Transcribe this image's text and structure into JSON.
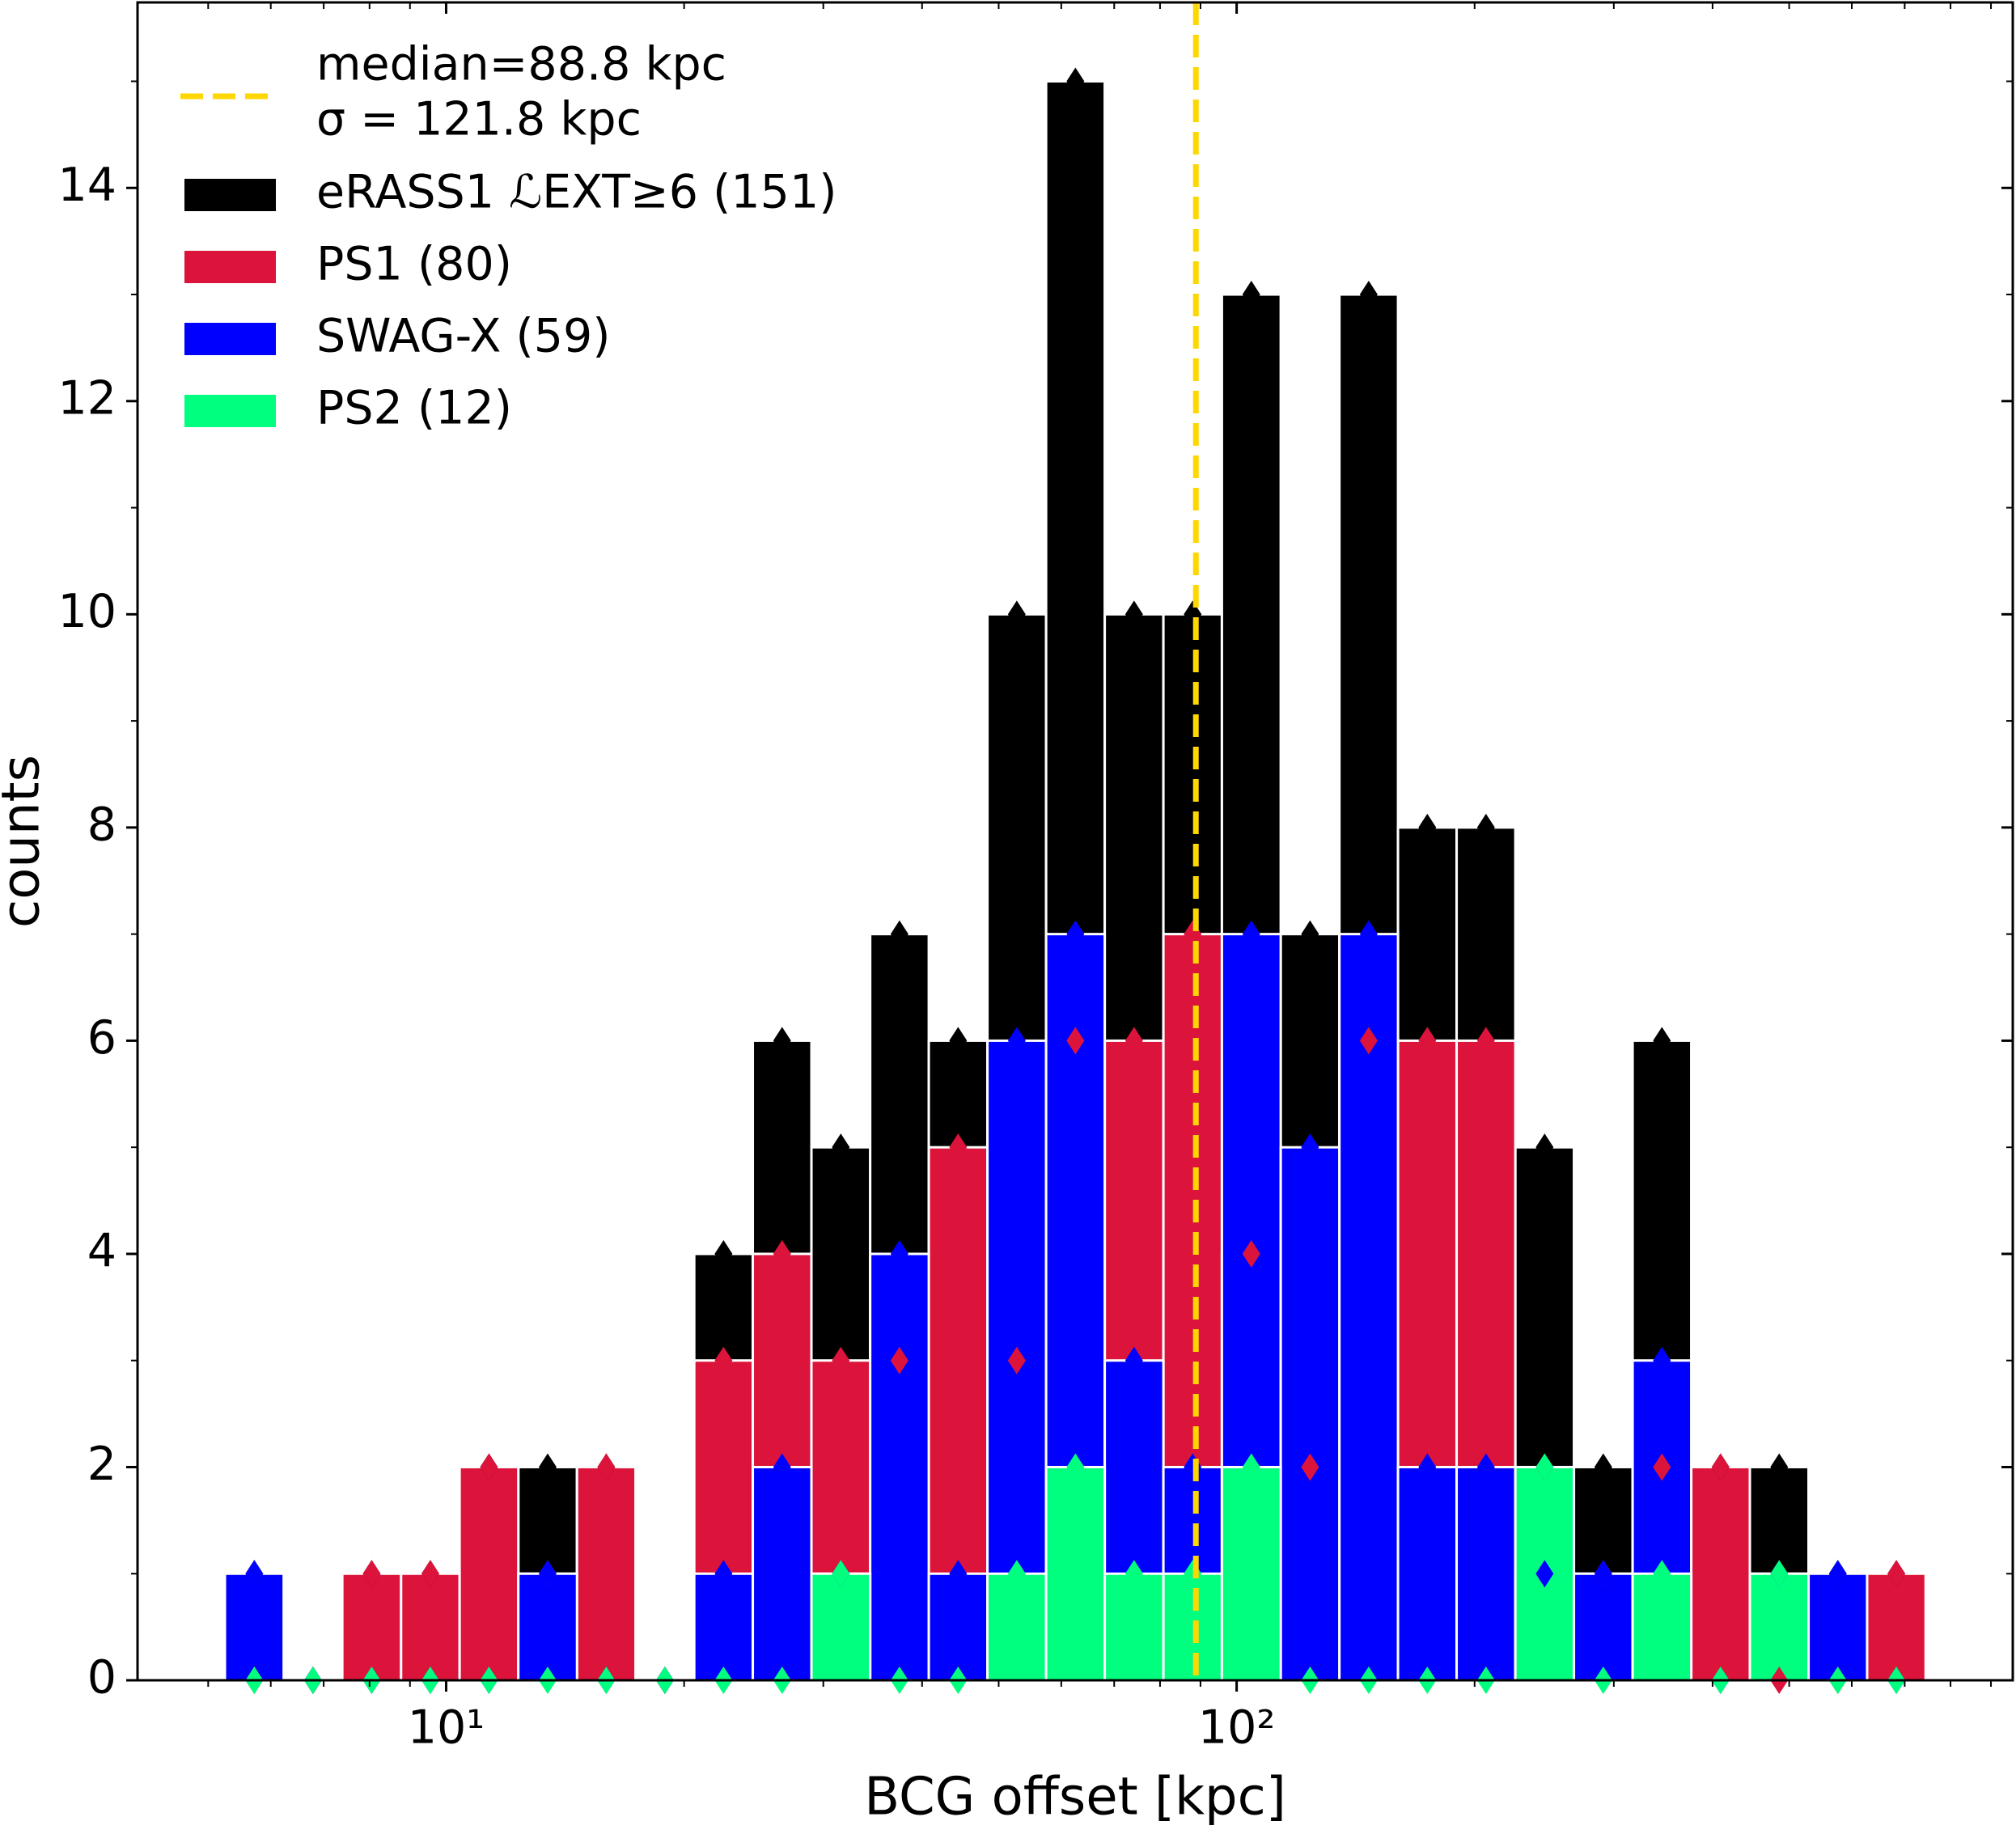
{
  "chart_data": {
    "type": "histogram",
    "xlabel": "BCG offset [kpc]",
    "ylabel": "counts",
    "log_x": true,
    "bins": [
      5.25,
      6.23,
      7.39,
      8.77,
      10.4,
      12.34,
      14.64,
      17.36,
      20.6,
      24.43,
      28.98,
      34.39,
      40.79,
      48.39,
      57.41,
      68.1,
      80.79,
      95.8,
      113.7,
      134.9,
      160.0,
      189.8,
      225.2,
      267.1,
      316.9,
      375.9,
      445.9,
      529.0,
      627.4,
      744.0
    ],
    "series": [
      {
        "name": "eRASS1 ℒEXT≥6 (151)",
        "color": "#000000",
        "values": [
          1,
          0,
          1,
          1,
          2,
          2,
          2,
          0,
          4,
          6,
          5,
          7,
          6,
          10,
          15,
          10,
          10,
          13,
          7,
          13,
          8,
          8,
          5,
          2,
          6,
          2,
          2,
          1,
          1
        ]
      },
      {
        "name": "PS1 (80)",
        "color": "#dc143c",
        "values": [
          0,
          0,
          1,
          1,
          2,
          1,
          2,
          0,
          3,
          4,
          3,
          3,
          5,
          3,
          6,
          6,
          7,
          4,
          2,
          6,
          6,
          6,
          2,
          1,
          2,
          2,
          0,
          0,
          1
        ]
      },
      {
        "name": "SWAG-X (59)",
        "color": "#0000ff",
        "values": [
          1,
          0,
          0,
          0,
          0,
          1,
          0,
          0,
          1,
          2,
          1,
          4,
          1,
          6,
          7,
          3,
          2,
          7,
          5,
          7,
          2,
          2,
          1,
          1,
          3,
          0,
          1,
          1,
          0
        ]
      },
      {
        "name": "PS2 (12)",
        "color": "#00ff7f",
        "values": [
          0,
          0,
          0,
          0,
          0,
          0,
          0,
          0,
          0,
          0,
          1,
          0,
          0,
          1,
          2,
          1,
          1,
          2,
          0,
          0,
          0,
          0,
          2,
          0,
          1,
          0,
          1,
          0,
          0
        ]
      }
    ],
    "median": {
      "value": 88.8,
      "label": "median=88.8 kpc",
      "sigma_label": "σ = 121.8 kpc",
      "color": "#ffd700"
    },
    "xlim": [
      4.07,
      959
    ],
    "xticks": [
      {
        "value": 10,
        "label": "10¹"
      },
      {
        "value": 100,
        "label": "10²"
      }
    ],
    "xticks_minor": [
      5,
      6,
      7,
      8,
      9,
      20,
      30,
      40,
      50,
      60,
      70,
      80,
      90,
      200,
      300,
      400,
      500,
      600,
      700,
      800,
      900
    ],
    "ylim": [
      0,
      15.74
    ],
    "yticks": [
      0,
      2,
      4,
      6,
      8,
      10,
      12,
      14
    ],
    "yticks_minor": [
      1,
      3,
      5,
      7,
      9,
      11,
      13,
      15
    ],
    "legend": "upper left"
  }
}
